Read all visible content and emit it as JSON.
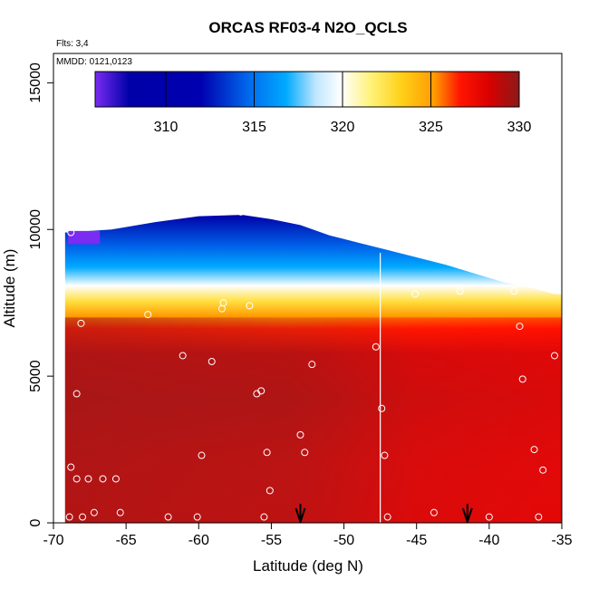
{
  "chart_data": {
    "type": "heatmap",
    "title": "ORCAS RF03-4 N2O_QCLS",
    "subtitle_flights": "Flts: 3,4",
    "subtitle_dates": "MMDD: 0121,0123",
    "xlabel": "Latitude (deg N)",
    "ylabel": "Altitude (m)",
    "xlim": [
      -70,
      -35
    ],
    "ylim": [
      0,
      16000
    ],
    "x_ticks": [
      "-70",
      "-65",
      "-60",
      "-55",
      "-50",
      "-45",
      "-40",
      "-35"
    ],
    "x_tick_values": [
      -70,
      -65,
      -60,
      -55,
      -50,
      -45,
      -40,
      -35
    ],
    "y_ticks": [
      "0",
      "5000",
      "10000",
      "15000"
    ],
    "y_tick_values": [
      0,
      5000,
      10000,
      15000
    ],
    "colorbar": {
      "range": [
        306,
        330
      ],
      "ticks": [
        "310",
        "315",
        "320",
        "325",
        "330"
      ],
      "tick_values": [
        310,
        315,
        320,
        325,
        330
      ],
      "colors": [
        "#7a2cf2",
        "#0000a8",
        "#0060e8",
        "#00b0ff",
        "#ffffff",
        "#ffe040",
        "#ff9a00",
        "#ff0000",
        "#8b1a1a"
      ]
    },
    "ceiling": [
      [
        -69,
        9900
      ],
      [
        -66,
        10000
      ],
      [
        -63,
        10250
      ],
      [
        -60,
        10450
      ],
      [
        -57,
        10500
      ],
      [
        -55,
        10350
      ],
      [
        -53,
        10150
      ],
      [
        -51,
        9800
      ],
      [
        -49,
        9550
      ],
      [
        -47,
        9300
      ],
      [
        -45,
        9050
      ],
      [
        -43,
        8800
      ],
      [
        -41,
        8500
      ],
      [
        -39,
        8200
      ],
      [
        -37,
        8000
      ],
      [
        -35.5,
        7800
      ]
    ],
    "sample_points": [
      [
        -68.9,
        200
      ],
      [
        -68,
        200
      ],
      [
        -67.2,
        350
      ],
      [
        -65.4,
        350
      ],
      [
        -62.1,
        200
      ],
      [
        -60.1,
        200
      ],
      [
        -55.5,
        200
      ],
      [
        -47,
        200
      ],
      [
        -43.8,
        350
      ],
      [
        -40,
        200
      ],
      [
        -36.6,
        200
      ],
      [
        -68.8,
        1900
      ],
      [
        -68.4,
        1500
      ],
      [
        -67.6,
        1500
      ],
      [
        -66.6,
        1500
      ],
      [
        -65.7,
        1500
      ],
      [
        -55.1,
        1100
      ],
      [
        -59.8,
        2300
      ],
      [
        -55.3,
        2400
      ],
      [
        -52.7,
        2400
      ],
      [
        -53,
        3000
      ],
      [
        -47.2,
        2300
      ],
      [
        -36.3,
        1800
      ],
      [
        -36.9,
        2500
      ],
      [
        -47.4,
        3900
      ],
      [
        -68.4,
        4400
      ],
      [
        -56,
        4400
      ],
      [
        -55.7,
        4500
      ],
      [
        -52.2,
        5400
      ],
      [
        -59.1,
        5500
      ],
      [
        -61.1,
        5700
      ],
      [
        -37.7,
        4900
      ],
      [
        -35.5,
        5700
      ],
      [
        -47.8,
        6000
      ],
      [
        -37.9,
        6700
      ],
      [
        -68.1,
        6800
      ],
      [
        -63.5,
        7100
      ],
      [
        -58.4,
        7300
      ],
      [
        -58.3,
        7500
      ],
      [
        -56.5,
        7400
      ],
      [
        -45.1,
        7800
      ],
      [
        -42,
        7900
      ],
      [
        -38.3,
        7900
      ],
      [
        -68.8,
        9900
      ],
      [
        -57.1,
        10600
      ]
    ],
    "flight_arrows": [
      -53,
      -41.5
    ],
    "vertical_profile_lat": -47.5
  }
}
